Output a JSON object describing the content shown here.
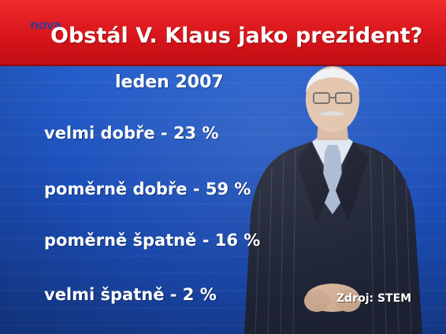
{
  "header": {
    "logo_text": "nova",
    "title": "Obstál V. Klaus jako prezident?"
  },
  "period": "leden 2007",
  "results": [
    {
      "label": "velmi dobře - 23 %"
    },
    {
      "label": "poměrně dobře - 59 %"
    },
    {
      "label": "poměrně špatně - 16 %"
    },
    {
      "label": "velmi špatně - 2 %"
    }
  ],
  "source": "Zdroj: STEM",
  "colors": {
    "header_red": "#d6141a",
    "background_blue": "#1c4fb9",
    "text": "#ffffff"
  }
}
